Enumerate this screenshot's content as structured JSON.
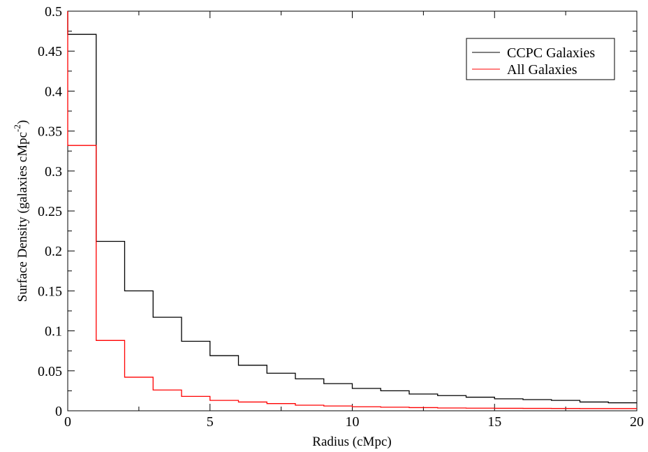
{
  "chart_data": {
    "type": "line",
    "style": "step-histogram",
    "xlabel": "Radius (cMpc)",
    "ylabel": "Surface Density (galaxies cMpc",
    "ylabel_sup": "-2",
    "ylabel_close": ")",
    "xlim": [
      0,
      20
    ],
    "ylim": [
      0,
      0.5
    ],
    "xticks": [
      0,
      5,
      10,
      15,
      20
    ],
    "yticks": [
      0,
      0.05,
      0.1,
      0.15,
      0.2,
      0.25,
      0.3,
      0.35,
      0.4,
      0.45,
      0.5
    ],
    "xtick_labels": [
      "0",
      "5",
      "10",
      "15",
      "20"
    ],
    "ytick_labels": [
      "0",
      "0.05",
      "0.1",
      "0.15",
      "0.2",
      "0.25",
      "0.3",
      "0.35",
      "0.4",
      "0.45",
      "0.5"
    ],
    "grid": false,
    "legend_position": "top-right",
    "bin_edges": [
      0,
      1,
      2,
      3,
      4,
      5,
      6,
      7,
      8,
      9,
      10,
      11,
      12,
      13,
      14,
      15,
      16,
      17,
      18,
      19,
      20
    ],
    "series": [
      {
        "name": "CCPC Galaxies",
        "color": "#000000",
        "values": [
          0.471,
          0.212,
          0.15,
          0.117,
          0.087,
          0.069,
          0.057,
          0.047,
          0.04,
          0.034,
          0.028,
          0.025,
          0.021,
          0.019,
          0.017,
          0.015,
          0.014,
          0.013,
          0.011,
          0.01
        ]
      },
      {
        "name": "All Galaxies",
        "color": "#ff0000",
        "values": [
          0.332,
          0.088,
          0.042,
          0.026,
          0.018,
          0.013,
          0.011,
          0.009,
          0.007,
          0.006,
          0.005,
          0.0045,
          0.004,
          0.0035,
          0.0033,
          0.0031,
          0.003,
          0.0029,
          0.0028,
          0.0028
        ]
      }
    ]
  }
}
